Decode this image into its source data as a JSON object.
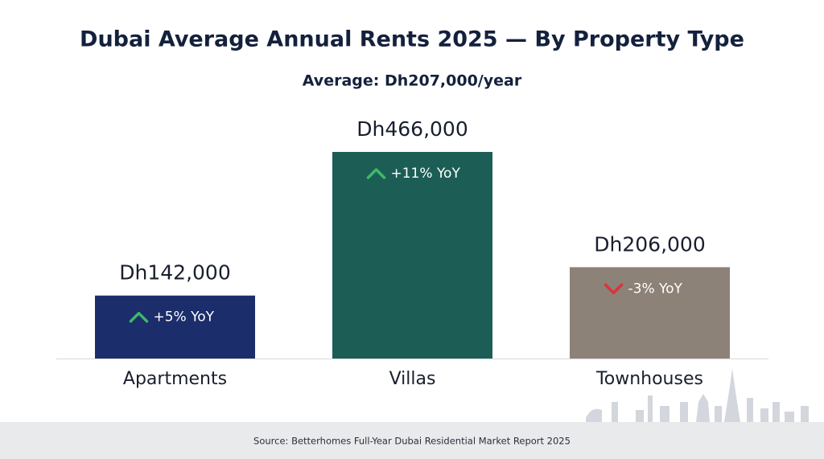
{
  "chart_data": {
    "type": "bar",
    "title": "Dubai Average Annual Rents 2025 — By Property Type",
    "subtitle": "Average: Dh207,000/year",
    "categories": [
      "Apartments",
      "Villas",
      "Townhouses"
    ],
    "values": [
      142000,
      466000,
      206000
    ],
    "value_labels": [
      "Dh142,000",
      "Dh466,000",
      "Dh206,000"
    ],
    "colors": [
      "#1c2d6b",
      "#1c5e55",
      "#8d8278"
    ],
    "changes": [
      "+5% YoY",
      "+11% YoY",
      "-3% YoY"
    ],
    "up_color": "#3db86b",
    "down_color": "#d9343f",
    "source": "Source: Betterhomes Full-Year Dubai Residential Market Report 2025"
  }
}
